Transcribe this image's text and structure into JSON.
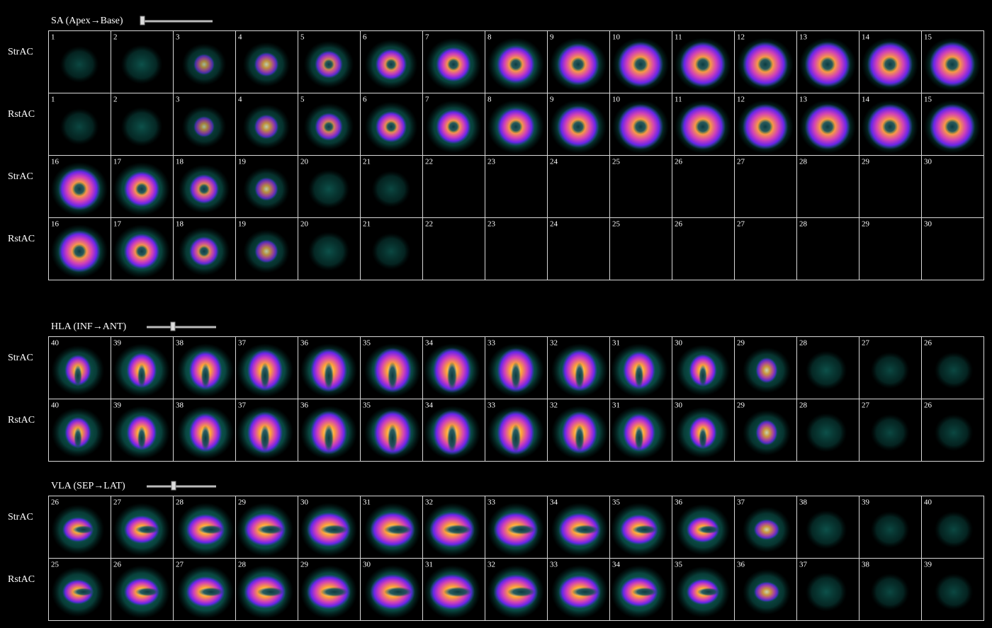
{
  "sections": [
    {
      "title": "SA (Apex→Base)",
      "rows": [
        {
          "label": "StrAC",
          "slices": [
            "1",
            "2",
            "3",
            "4",
            "5",
            "6",
            "7",
            "8",
            "9",
            "10",
            "11",
            "12",
            "13",
            "14",
            "15"
          ]
        },
        {
          "label": "RstAC",
          "slices": [
            "1",
            "2",
            "3",
            "4",
            "5",
            "6",
            "7",
            "8",
            "9",
            "10",
            "11",
            "12",
            "13",
            "14",
            "15"
          ]
        },
        {
          "label": "StrAC",
          "slices": [
            "16",
            "17",
            "18",
            "19",
            "20",
            "21",
            "22",
            "23",
            "24",
            "25",
            "26",
            "27",
            "28",
            "29",
            "30"
          ]
        },
        {
          "label": "RstAC",
          "slices": [
            "16",
            "17",
            "18",
            "19",
            "20",
            "21",
            "22",
            "23",
            "24",
            "25",
            "26",
            "27",
            "28",
            "29",
            "30"
          ]
        }
      ]
    },
    {
      "title": "HLA (INF→ANT)",
      "rows": [
        {
          "label": "StrAC",
          "slices": [
            "40",
            "39",
            "38",
            "37",
            "36",
            "35",
            "34",
            "33",
            "32",
            "31",
            "30",
            "29",
            "28",
            "27",
            "26"
          ]
        },
        {
          "label": "RstAC",
          "slices": [
            "40",
            "39",
            "38",
            "37",
            "36",
            "35",
            "34",
            "33",
            "32",
            "31",
            "30",
            "29",
            "28",
            "27",
            "26"
          ]
        }
      ]
    },
    {
      "title": "VLA (SEP→LAT)",
      "rows": [
        {
          "label": "StrAC",
          "slices": [
            "26",
            "27",
            "28",
            "29",
            "30",
            "31",
            "32",
            "33",
            "34",
            "35",
            "36",
            "37",
            "38",
            "39",
            "40"
          ]
        },
        {
          "label": "RstAC",
          "slices": [
            "25",
            "26",
            "27",
            "28",
            "29",
            "30",
            "31",
            "32",
            "33",
            "34",
            "35",
            "36",
            "37",
            "38",
            "39"
          ]
        }
      ]
    }
  ]
}
